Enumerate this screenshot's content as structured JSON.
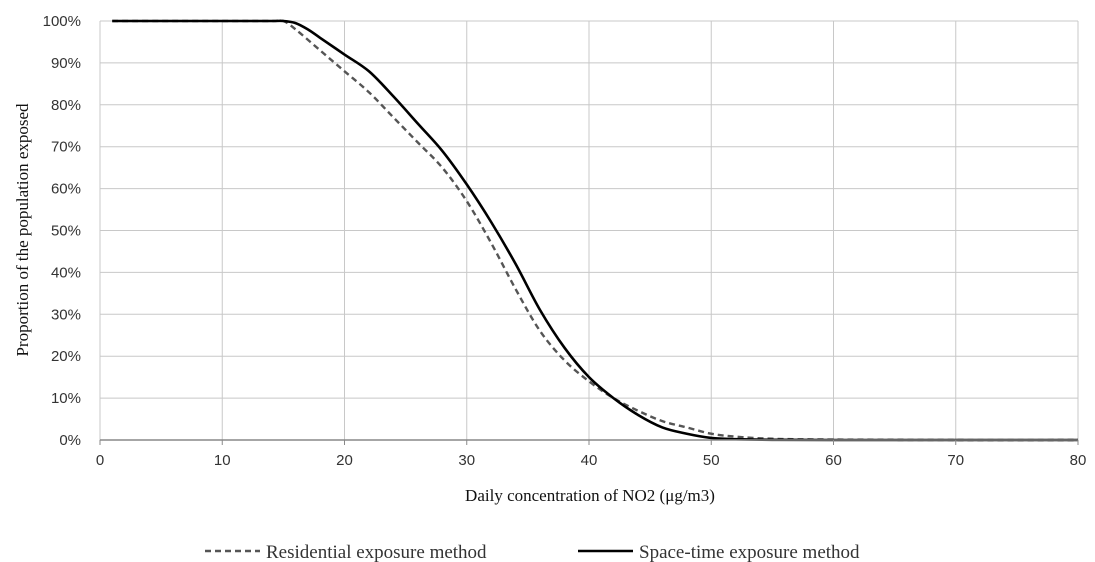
{
  "chart_data": {
    "type": "line",
    "xlabel": "Daily concentration of NO2 (μg/m3)",
    "ylabel": "Proportion of the population exposed",
    "xlim": [
      0,
      80
    ],
    "ylim": [
      0,
      100
    ],
    "x_ticks": [
      "0",
      "10",
      "20",
      "30",
      "40",
      "50",
      "60",
      "70",
      "80"
    ],
    "y_ticks": [
      "0%",
      "10%",
      "20%",
      "30%",
      "40%",
      "50%",
      "60%",
      "70%",
      "80%",
      "90%",
      "100%"
    ],
    "grid": true,
    "legend_position": "bottom",
    "series": [
      {
        "name": "Residential exposure method",
        "style": "dashed",
        "color": "#555555",
        "x": [
          1,
          5,
          10,
          14,
          15,
          16,
          18,
          20,
          22,
          24,
          26,
          28,
          30,
          32,
          34,
          36,
          38,
          40,
          42,
          44,
          46,
          48,
          50,
          52,
          55,
          60,
          70,
          80
        ],
        "y": [
          100,
          100,
          100,
          100,
          100,
          98,
          93,
          88,
          83,
          77,
          71,
          65,
          57,
          47,
          36,
          26,
          19,
          14,
          10,
          7,
          4.5,
          3,
          1.5,
          0.8,
          0.3,
          0.1,
          0,
          0
        ]
      },
      {
        "name": "Space-time exposure method",
        "style": "solid",
        "color": "#000000",
        "x": [
          1,
          5,
          10,
          14,
          15,
          16,
          17,
          18,
          20,
          22,
          24,
          26,
          28,
          30,
          32,
          34,
          36,
          38,
          40,
          42,
          44,
          46,
          48,
          50,
          52,
          55,
          60,
          70,
          80
        ],
        "y": [
          100,
          100,
          100,
          100,
          100,
          99.5,
          98,
          96,
          92,
          88,
          82,
          75.5,
          69,
          61,
          52,
          42,
          31,
          22,
          15,
          10,
          6,
          3,
          1.5,
          0.5,
          0.2,
          0.05,
          0,
          0,
          0
        ]
      }
    ]
  }
}
